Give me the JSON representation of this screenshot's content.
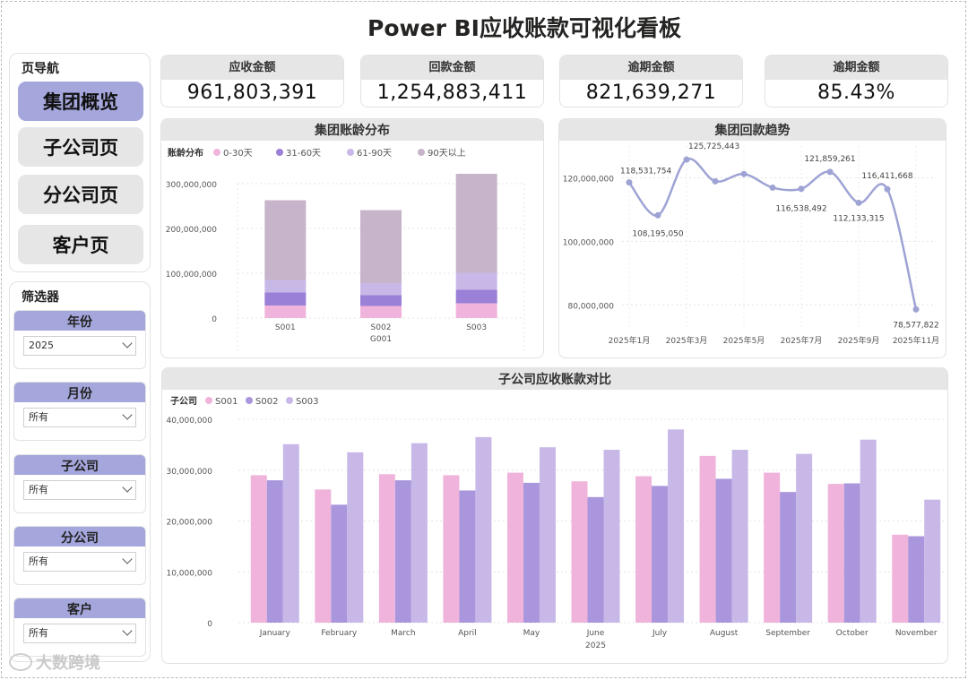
{
  "title": "Power BI应收账款可视化看板",
  "nav": {
    "title": "页导航",
    "items": [
      {
        "label": "集团概览",
        "active": true
      },
      {
        "label": "子公司页",
        "active": false
      },
      {
        "label": "分公司页",
        "active": false
      },
      {
        "label": "客户页",
        "active": false
      }
    ]
  },
  "filters": {
    "title": "筛选器",
    "items": [
      {
        "label": "年份",
        "value": "2025"
      },
      {
        "label": "月份",
        "value": "所有"
      },
      {
        "label": "子公司",
        "value": "所有"
      },
      {
        "label": "分公司",
        "value": "所有"
      },
      {
        "label": "客户",
        "value": "所有"
      }
    ]
  },
  "kpis": [
    {
      "label": "应收金额",
      "value": "961,803,391"
    },
    {
      "label": "回款金额",
      "value": "1,254,883,411"
    },
    {
      "label": "逾期金额",
      "value": "821,639,271"
    },
    {
      "label": "逾期金额",
      "value": "85.43%"
    }
  ],
  "colors": {
    "accent": "#a4a6dc",
    "header_gray": "#e6e6e6",
    "s001": "#f0b4dc",
    "s002": "#a996dc",
    "s003": "#c8b8e8",
    "age_0_30": "#f0b4dc",
    "age_31_60": "#9a80d6",
    "age_61_90": "#c8b8e8",
    "age_90plus": "#c7b4ca",
    "line": "#9ea3d4"
  },
  "watermark": "大数跨境",
  "chart_data": [
    {
      "type": "bar",
      "stacked": true,
      "title": "集团账龄分布",
      "legend_title": "账龄分布",
      "categories": [
        "S001",
        "S002",
        "S003"
      ],
      "group_label": "G001",
      "ylim": [
        0,
        300000000
      ],
      "yticks": [
        "300,000,000",
        "200,000,000",
        "100,000,000",
        "0"
      ],
      "series": [
        {
          "name": "0-30天",
          "values": [
            28000000,
            27000000,
            33000000
          ]
        },
        {
          "name": "31-60天",
          "values": [
            29000000,
            24000000,
            30000000
          ]
        },
        {
          "name": "61-90天",
          "values": [
            28000000,
            27000000,
            38000000
          ]
        },
        {
          "name": "90天以上",
          "values": [
            178000000,
            163000000,
            221000000
          ]
        }
      ]
    },
    {
      "type": "line",
      "title": "集团回款趋势",
      "x": [
        "2025年1月",
        "2025年2月",
        "2025年3月",
        "2025年4月",
        "2025年5月",
        "2025年6月",
        "2025年7月",
        "2025年8月",
        "2025年9月",
        "2025年10月",
        "2025年11月"
      ],
      "xticks": [
        "2025年1月",
        "2025年3月",
        "2025年5月",
        "2025年7月",
        "2025年9月",
        "2025年11月"
      ],
      "values": [
        118531754,
        108195050,
        125725443,
        118900000,
        121200000,
        116900000,
        116538492,
        121859261,
        112133315,
        116411668,
        78577822
      ],
      "labels": [
        "118,531,754",
        "108,195,050",
        "125,725,443",
        "",
        "",
        "",
        "116,538,492",
        "121,859,261",
        "112,133,315",
        "116,411,668",
        "78,577,822"
      ],
      "ylim": [
        75000000,
        130000000
      ],
      "yticks": [
        "120,000,000",
        "100,000,000",
        "80,000,000"
      ]
    },
    {
      "type": "bar",
      "title": "子公司应收账款对比",
      "legend_title": "子公司",
      "categories": [
        "January",
        "February",
        "March",
        "April",
        "May",
        "June",
        "July",
        "August",
        "September",
        "October",
        "November"
      ],
      "x_group_label": "2025",
      "ylim": [
        0,
        40000000
      ],
      "yticks": [
        "40,000,000",
        "30,000,000",
        "20,000,000",
        "10,000,000",
        "0"
      ],
      "series": [
        {
          "name": "S001",
          "values": [
            29000000,
            26200000,
            29200000,
            29000000,
            29500000,
            27800000,
            28800000,
            32800000,
            29500000,
            27300000,
            17300000
          ]
        },
        {
          "name": "S002",
          "values": [
            28000000,
            23200000,
            28000000,
            26000000,
            27500000,
            24700000,
            26900000,
            28300000,
            25700000,
            27400000,
            17000000
          ]
        },
        {
          "name": "S003",
          "values": [
            35100000,
            33500000,
            35300000,
            36500000,
            34500000,
            34000000,
            38000000,
            34000000,
            33200000,
            36000000,
            24200000
          ]
        }
      ]
    }
  ]
}
